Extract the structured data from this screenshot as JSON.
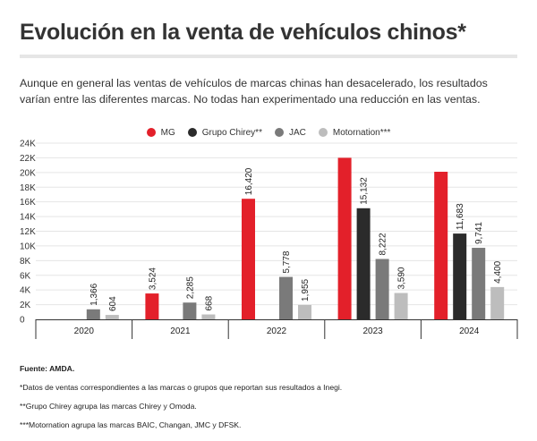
{
  "title": "Evolución en la venta de vehículos chinos*",
  "subtitle": "Aunque en general las ventas de vehículos de marcas chinas han desacelerado, los resultados varían entre las diferentes marcas. No todas han experimentado una reducción en las ventas.",
  "colors": {
    "MG": "#e3202a",
    "Grupo Chirey": "#2b2b2b",
    "JAC": "#7a7a7a",
    "Motornation": "#bdbdbd",
    "grid": "#e5e5e5",
    "axis": "#333333"
  },
  "notes": {
    "source": "Fuente: AMDA.",
    "note1": "*Datos de ventas correspondientes a las marcas o grupos que reportan sus resultados a Inegi.",
    "note2": "**Grupo Chirey agrupa las marcas Chirey y Omoda.",
    "note3": "***Motornation agrupa las marcas BAIC, Changan, JMC y DFSK."
  },
  "chart_data": {
    "type": "bar",
    "title": "Evolución en la venta de vehículos chinos*",
    "xlabel": "",
    "ylabel": "",
    "categories": [
      "2020",
      "2021",
      "2022",
      "2023",
      "2024"
    ],
    "ylim": [
      0,
      24000
    ],
    "yticks": [
      0,
      2000,
      4000,
      6000,
      8000,
      10000,
      12000,
      14000,
      16000,
      18000,
      20000,
      22000,
      24000
    ],
    "ytick_labels": [
      "0",
      "2K",
      "4K",
      "6K",
      "8K",
      "10K",
      "12K",
      "14K",
      "16K",
      "18K",
      "20K",
      "22K",
      "24K"
    ],
    "legend_position": "top-center",
    "grid": true,
    "series": [
      {
        "name": "MG",
        "legend_label": "MG",
        "color_key": "MG",
        "values": [
          null,
          3524,
          16420,
          22000,
          20100
        ],
        "labels": [
          "",
          "3,524",
          "16,420",
          "",
          ""
        ]
      },
      {
        "name": "Grupo Chirey",
        "legend_label": "Grupo Chirey**",
        "color_key": "Grupo Chirey",
        "values": [
          null,
          null,
          null,
          15132,
          11683
        ],
        "labels": [
          "",
          "",
          "",
          "15,132",
          "11,683"
        ]
      },
      {
        "name": "JAC",
        "legend_label": "JAC",
        "color_key": "JAC",
        "values": [
          1366,
          2285,
          5778,
          8222,
          9741
        ],
        "labels": [
          "1,366",
          "2,285",
          "5,778",
          "8,222",
          "9,741"
        ]
      },
      {
        "name": "Motornation",
        "legend_label": "Motornation***",
        "color_key": "Motornation",
        "values": [
          604,
          668,
          1955,
          3590,
          4400
        ],
        "labels": [
          "604",
          "668",
          "1,955",
          "3,590",
          "4,400"
        ]
      }
    ]
  }
}
